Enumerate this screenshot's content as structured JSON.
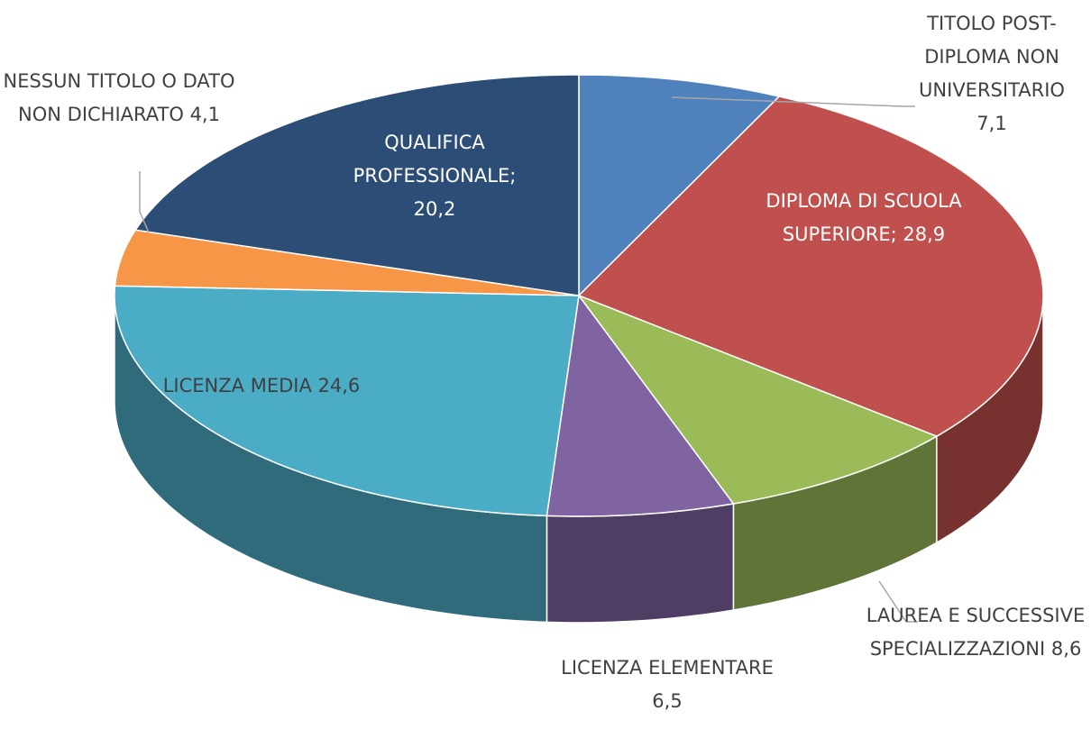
{
  "chart_data": {
    "type": "pie",
    "categories": [
      "TITOLO POST-DIPLOMA NON UNIVERSITARIO",
      "DIPLOMA DI SCUOLA SUPERIORE;",
      "LAUREA E SUCCESSIVE SPECIALIZZAZIONI",
      "LICENZA ELEMENTARE",
      "LICENZA MEDIA",
      "NESSUN TITOLO O DATO NON DICHIARATO",
      "QUALIFICA PROFESSIONALE;"
    ],
    "values": [
      7.1,
      28.9,
      8.6,
      6.5,
      24.6,
      4.1,
      20.2
    ],
    "value_labels": [
      "7,1",
      "28,9",
      "8,6",
      "6,5",
      "24,6",
      "4,1",
      "20,2"
    ],
    "colors": [
      "#4f81bd",
      "#c0504d",
      "#9bbb59",
      "#8064a2",
      "#4bacc6",
      "#f79646",
      "#2c4d75"
    ]
  }
}
